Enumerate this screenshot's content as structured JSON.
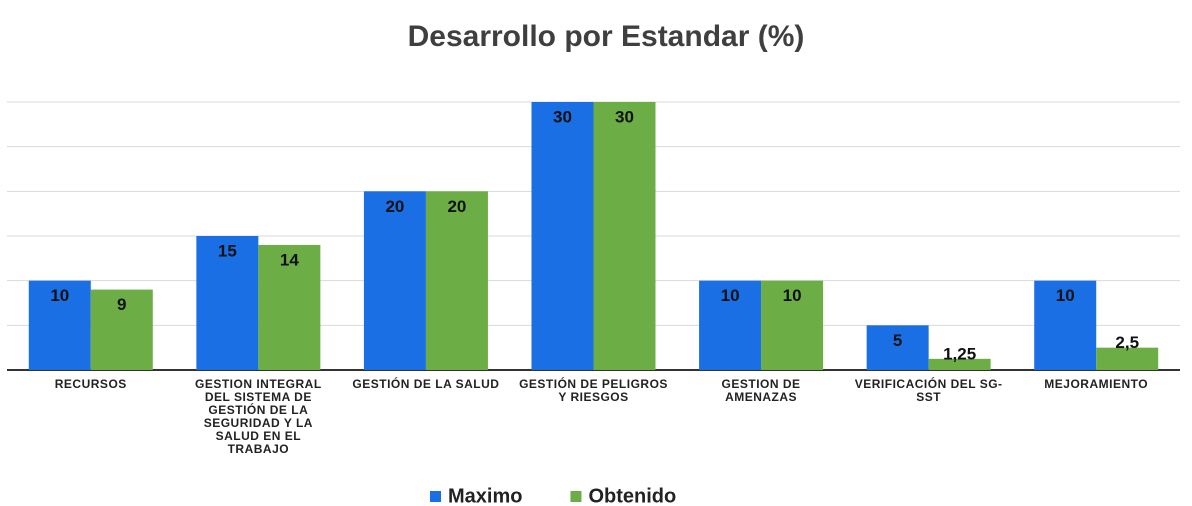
{
  "chart_data": {
    "type": "bar",
    "title": "Desarrollo por Estandar (%)",
    "categories": [
      "RECURSOS",
      "GESTION INTEGRAL DEL SISTEMA DE GESTIÓN DE LA SEGURIDAD Y LA SALUD EN EL TRABAJO",
      "GESTIÓN DE LA SALUD",
      "GESTIÓN DE PELIGROS Y RIESGOS",
      "GESTION DE AMENAZAS",
      "VERIFICACIÓN DEL SG-SST",
      "MEJORAMIENTO"
    ],
    "series": [
      {
        "name": "Maximo",
        "color": "#1b6fe4",
        "values": [
          10,
          15,
          20,
          30,
          10,
          5,
          10
        ]
      },
      {
        "name": "Obtenido",
        "color": "#6cad46",
        "values": [
          9,
          14,
          20,
          30,
          10,
          1.25,
          2.5
        ],
        "value_labels": [
          "9",
          "14",
          "20",
          "30",
          "10",
          "1,25",
          "2,5"
        ]
      }
    ],
    "ylim": [
      0,
      30
    ],
    "yticks": [
      0,
      5,
      10,
      15,
      20,
      25,
      30
    ],
    "grid": true,
    "legend": "bottom"
  }
}
